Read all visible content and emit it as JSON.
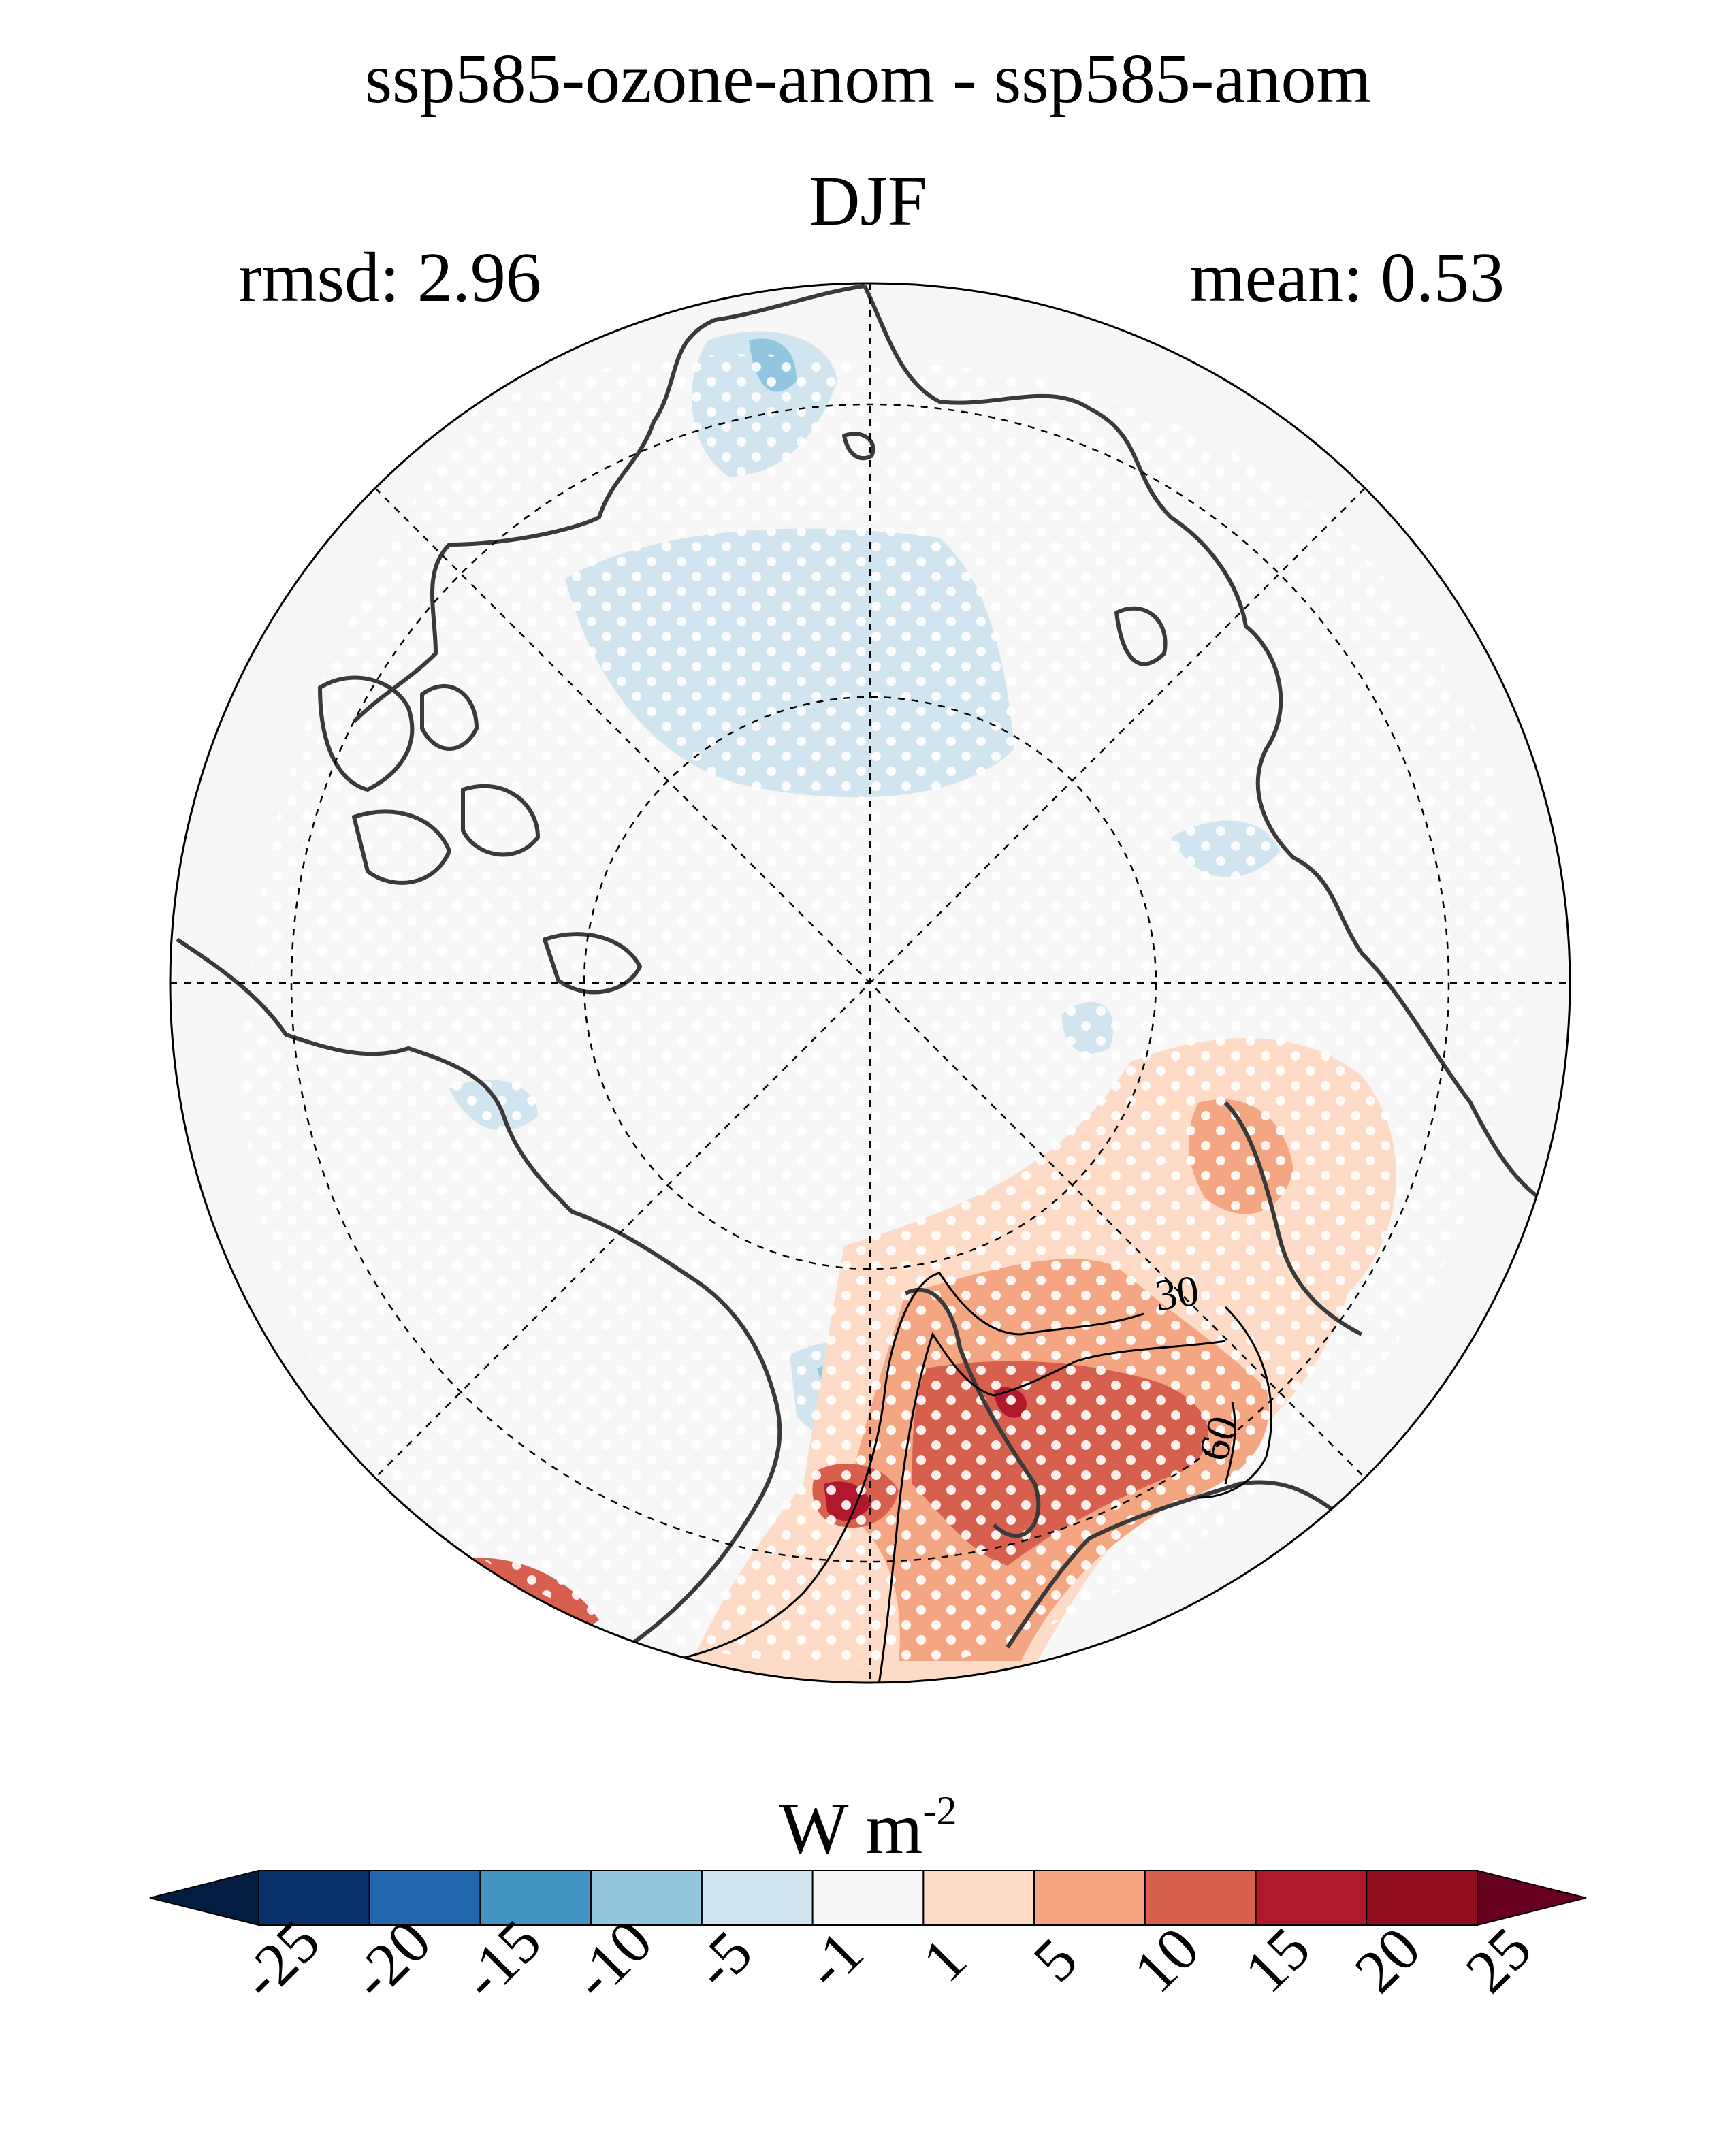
{
  "title": "ssp585-ozone-anom - ssp585-anom",
  "season": "DJF",
  "stats": {
    "rmsd_label": "rmsd: 2.96",
    "mean_label": "mean: 0.53"
  },
  "map": {
    "projection": "north-polar-stereographic",
    "contour_labels": [
      "30",
      "60"
    ],
    "colors": {
      "land_outline": "#3a3a3a",
      "ocean_neutral": "#f7f7f7",
      "stipple": "#ffffff"
    }
  },
  "colorbar": {
    "unit_base": "W m",
    "unit_exponent": "-2",
    "ticks": [
      "-25",
      "-20",
      "-15",
      "-10",
      "-5",
      "-1",
      "1",
      "5",
      "10",
      "15",
      "20",
      "25"
    ],
    "colors": [
      "#08306b",
      "#2166ac",
      "#4393c3",
      "#92c5de",
      "#d1e5f0",
      "#f7f7f7",
      "#fddbc7",
      "#f4a582",
      "#d6604d",
      "#b2182b",
      "#8f0d1f"
    ],
    "extend_colors": {
      "low": "#041c3f",
      "high": "#67001f"
    }
  }
}
